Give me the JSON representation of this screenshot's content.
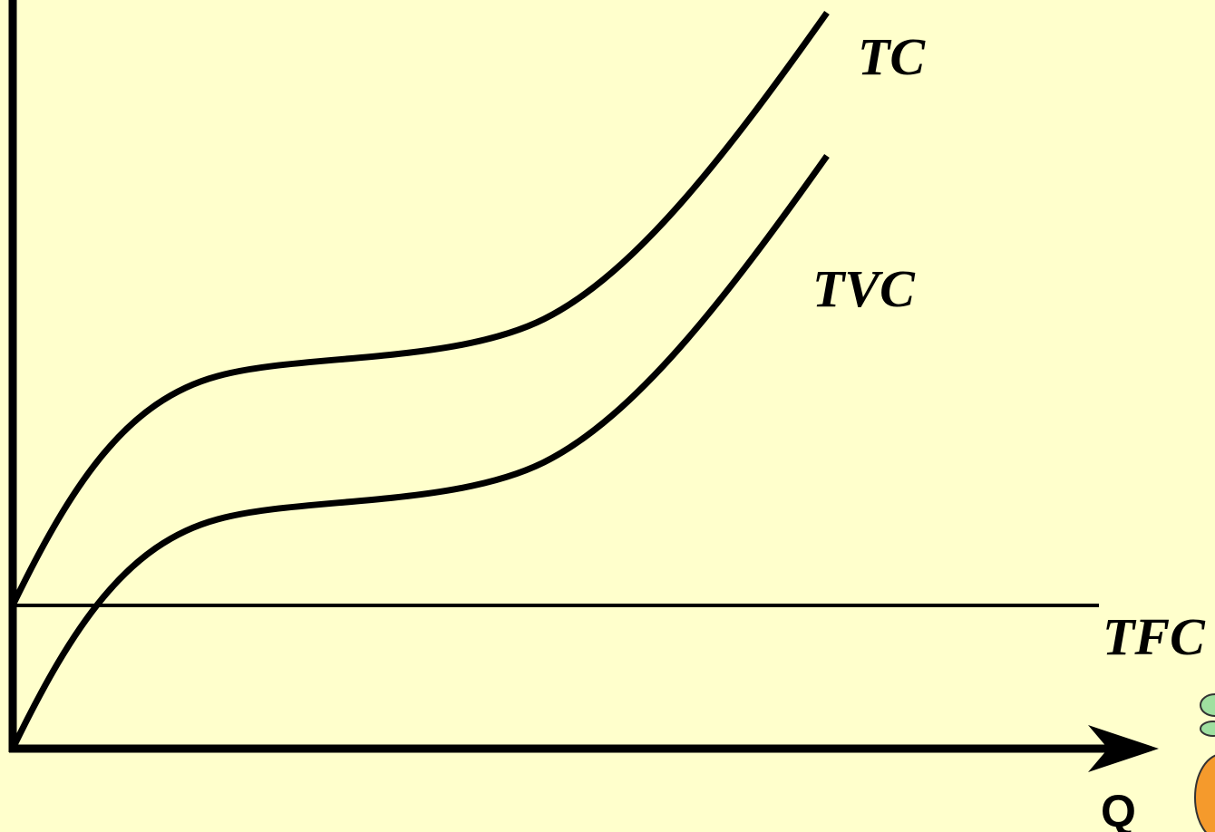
{
  "labels": {
    "tc": "TC",
    "tvc": "TVC",
    "tfc": "TFC"
  },
  "axes": {
    "x_label": "Q"
  }
}
